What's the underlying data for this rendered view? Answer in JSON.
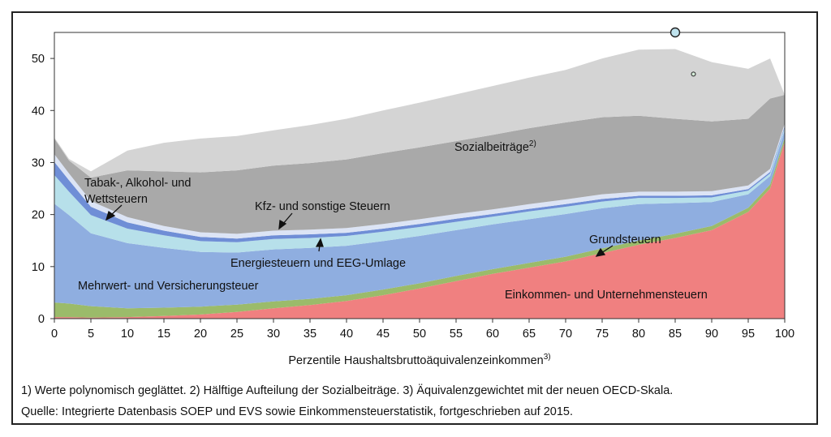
{
  "chart_data": {
    "type": "area",
    "stacked": true,
    "xlabel": "Perzentile Haushaltsbruttoäquivalenzeinkommen",
    "xlabel_sup": "3)",
    "xlim": [
      0,
      100
    ],
    "ylim": [
      0,
      55
    ],
    "xticks": [
      "0",
      "5",
      "10",
      "15",
      "20",
      "25",
      "30",
      "35",
      "40",
      "45",
      "50",
      "55",
      "60",
      "65",
      "70",
      "75",
      "80",
      "85",
      "90",
      "95",
      "100"
    ],
    "yticks": [
      "0",
      "10",
      "20",
      "30",
      "40",
      "50"
    ],
    "x": [
      0,
      2,
      5,
      10,
      15,
      20,
      25,
      30,
      35,
      40,
      45,
      50,
      55,
      60,
      65,
      70,
      75,
      80,
      85,
      90,
      95,
      98,
      100
    ],
    "series": [
      {
        "name": "Einkommen- und Unternehmensteuern",
        "color": "#f08080",
        "values": [
          0.3,
          0.3,
          0.2,
          0.3,
          0.5,
          0.8,
          1.3,
          2,
          2.6,
          3.4,
          4.5,
          5.8,
          7.2,
          8.6,
          9.8,
          11,
          12.6,
          14.2,
          15.5,
          17,
          20.5,
          25,
          34
        ]
      },
      {
        "name": "Grundsteuern",
        "color": "#9bbb6a",
        "values": [
          2.8,
          2.6,
          2.2,
          1.7,
          1.6,
          1.5,
          1.4,
          1.3,
          1.2,
          1.1,
          1.1,
          1.0,
          1.0,
          0.9,
          0.9,
          0.9,
          0.9,
          0.8,
          0.8,
          0.8,
          0.8,
          0.8,
          0.8
        ]
      },
      {
        "name": "Mehrwert- und Versicherungsteuer",
        "color": "#8faee0",
        "values": [
          19,
          17,
          14,
          12.5,
          11.5,
          10.5,
          10,
          10,
          9.8,
          9.5,
          9.3,
          9.1,
          8.8,
          8.6,
          8.4,
          8.2,
          7.7,
          7.0,
          5.9,
          4.6,
          2.6,
          1.6,
          1.4
        ]
      },
      {
        "name": "Energiesteuern und EEG-Umlage",
        "color": "#b7e0ea",
        "values": [
          5.5,
          4.5,
          3.5,
          2.8,
          2.4,
          2.1,
          2.0,
          2.0,
          1.9,
          1.9,
          1.8,
          1.7,
          1.6,
          1.5,
          1.5,
          1.4,
          1.3,
          1.2,
          1.0,
          0.9,
          0.7,
          0.5,
          0.5
        ]
      },
      {
        "name": "Tabak-, Alkohol- und Wettsteuern",
        "color": "#6f8ed6",
        "values": [
          2.5,
          2.2,
          1.6,
          1.2,
          0.9,
          0.8,
          0.7,
          0.7,
          0.7,
          0.6,
          0.6,
          0.6,
          0.6,
          0.5,
          0.5,
          0.5,
          0.5,
          0.4,
          0.4,
          0.4,
          0.3,
          0.3,
          0.3
        ]
      },
      {
        "name": "Kfz- und sonstige Steuern",
        "color": "#dce4f5",
        "values": [
          1.5,
          1.3,
          1.1,
          1.0,
          0.9,
          0.9,
          0.9,
          0.9,
          0.9,
          0.9,
          0.9,
          0.9,
          0.9,
          0.9,
          0.9,
          0.9,
          0.9,
          0.8,
          0.8,
          0.8,
          0.7,
          0.6,
          0.5
        ]
      },
      {
        "name": "Sozialbeiträge",
        "name_sup": "2)",
        "color": "#a9a9a9",
        "values": [
          3,
          2.5,
          4.5,
          9,
          10.5,
          11.5,
          12.2,
          12.5,
          12.8,
          13.2,
          13.6,
          13.8,
          14.0,
          14.3,
          14.6,
          14.8,
          14.8,
          14.6,
          14.0,
          13.4,
          12.8,
          13.5,
          5.5
        ]
      },
      {
        "name": "",
        "color": "#d4d4d4",
        "values": [
          0.2,
          0.3,
          1.2,
          3.8,
          5.5,
          6.5,
          6.6,
          6.8,
          7.3,
          7.8,
          8.2,
          8.6,
          9.0,
          9.4,
          9.7,
          10.1,
          11.3,
          12.7,
          13.4,
          11.4,
          9.6,
          7.7,
          0.0
        ]
      }
    ],
    "markers": [
      {
        "x": 85,
        "y": 55,
        "size": "large"
      },
      {
        "x": 87.5,
        "y": 47,
        "size": "small"
      }
    ],
    "annotations": [
      {
        "text": "Sozialbeiträge",
        "sup": "2)"
      },
      {
        "text": "Tabak-, Alkohol- und"
      },
      {
        "text": "Wettsteuern"
      },
      {
        "text": "Kfz- und sonstige Steuern"
      },
      {
        "text": "Grundsteuern"
      },
      {
        "text": "Energiesteuern und EEG-Umlage"
      },
      {
        "text": "Mehrwert- und Versicherungsteuer"
      },
      {
        "text": "Einkommen- und Unternehmensteuern"
      }
    ]
  },
  "footnotes": {
    "line1": "1) Werte polynomisch geglättet. 2) Hälftige Aufteilung der Sozialbeiträge. 3) Äquivalenzgewichtet mit der neuen OECD-Skala.",
    "line2": "Quelle: Integrierte Datenbasis SOEP und EVS sowie Einkommensteuerstatistik, fortgeschrieben auf 2015."
  }
}
